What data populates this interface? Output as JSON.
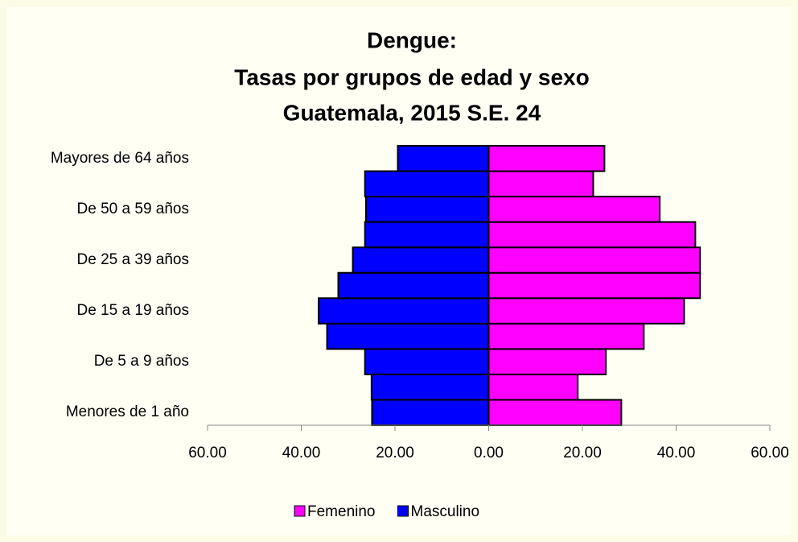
{
  "chart_data": {
    "type": "pyramid",
    "title": [
      "Dengue:",
      "Tasas por grupos de edad y sexo",
      "Guatemala, 2015 S.E. 24"
    ],
    "categories": [
      "Menores de 1 año",
      null,
      "De 5 a 9 años",
      null,
      "De 15 a 19 años",
      null,
      "De 25 a 39 años",
      null,
      "De 50 a 59 años",
      null,
      "Mayores de 64 años"
    ],
    "series": [
      {
        "name": "Femenino",
        "color": "#ff00ff",
        "values": [
          28.3,
          19.0,
          25.0,
          33.1,
          41.7,
          45.1,
          45.1,
          44.1,
          36.5,
          22.3,
          24.7
        ]
      },
      {
        "name": "Masculino",
        "color": "#0000ff",
        "values": [
          -24.9,
          -25.0,
          -26.4,
          -34.5,
          -36.3,
          -32.1,
          -29.0,
          -26.4,
          -26.2,
          -26.4,
          -19.4
        ]
      }
    ],
    "xlim": [
      -60,
      60
    ],
    "xticks": [
      {
        "value": -60,
        "label": "60.00"
      },
      {
        "value": -40,
        "label": "40.00"
      },
      {
        "value": -20,
        "label": "20.00"
      },
      {
        "value": 0,
        "label": "0.00"
      },
      {
        "value": 20,
        "label": "20.00"
      },
      {
        "value": 40,
        "label": "40.00"
      },
      {
        "value": 60,
        "label": "60.00"
      }
    ],
    "legend": "bottom"
  }
}
